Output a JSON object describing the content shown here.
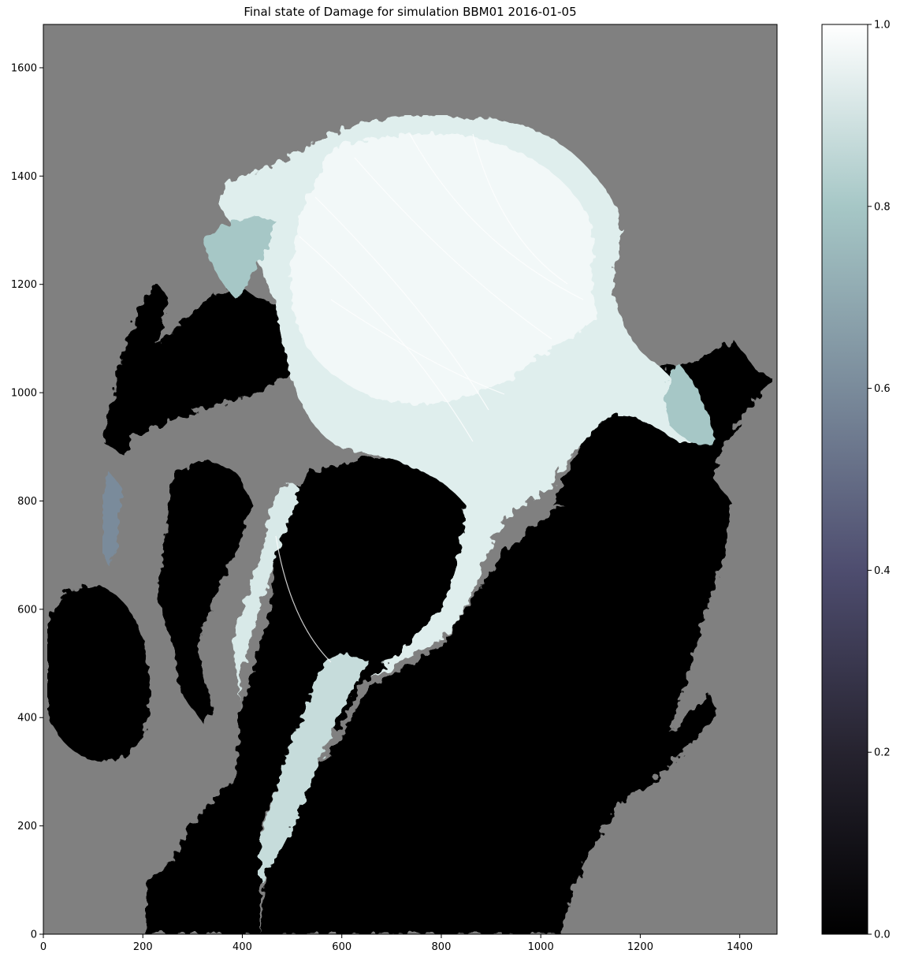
{
  "chart_data": {
    "type": "heatmap",
    "title": "Final state of Damage for simulation BBM01 2016-01-05",
    "xlabel": "",
    "ylabel": "",
    "xlim": [
      0,
      1475
    ],
    "ylim": [
      0,
      1680
    ],
    "x_ticks": [
      0,
      200,
      400,
      600,
      800,
      1000,
      1200,
      1400
    ],
    "y_ticks": [
      0,
      200,
      400,
      600,
      800,
      1000,
      1200,
      1400,
      1600
    ],
    "colorbar": {
      "colormap": "bone",
      "range": [
        0.0,
        1.0
      ],
      "ticks": [
        "0.0",
        "0.2",
        "0.4",
        "0.6",
        "0.8",
        "1.0"
      ],
      "tick_values": [
        0.0,
        0.2,
        0.4,
        0.6,
        0.8,
        1.0
      ]
    },
    "background_color": "#808080",
    "ocean_color": "#000000",
    "high_damage_color": "#ffffff"
  }
}
